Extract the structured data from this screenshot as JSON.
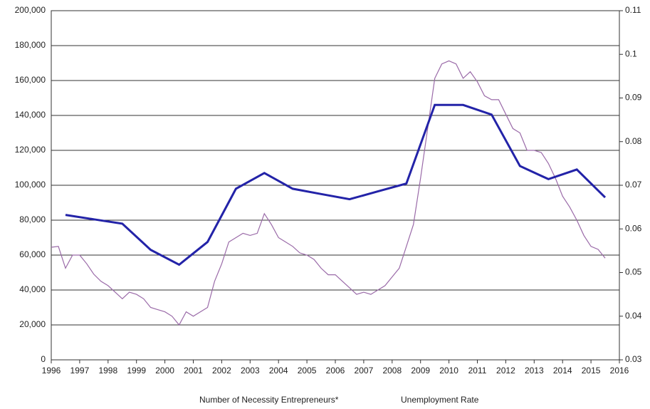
{
  "chart_data": {
    "type": "line",
    "xlim": [
      1996,
      2016
    ],
    "xticks": [
      1996,
      1997,
      1998,
      1999,
      2000,
      2001,
      2002,
      2003,
      2004,
      2005,
      2006,
      2007,
      2008,
      2009,
      2010,
      2011,
      2012,
      2013,
      2014,
      2015,
      2016
    ],
    "ylim": [
      0,
      200000
    ],
    "yticks": [
      0,
      {
        "value": 20000,
        "label": "20,000"
      },
      {
        "value": 40000,
        "label": "40,000"
      },
      {
        "value": 60000,
        "label": "60,000"
      },
      {
        "value": 80000,
        "label": "80,000"
      },
      {
        "value": 100000,
        "label": "100,000"
      },
      {
        "value": 120000,
        "label": "120,000"
      },
      {
        "value": 140000,
        "label": "140,000"
      },
      {
        "value": 160000,
        "label": "160,000"
      },
      {
        "value": 180000,
        "label": "180,000"
      },
      {
        "value": 200000,
        "label": "200,000"
      }
    ],
    "y2lim": [
      0.03,
      0.11
    ],
    "y2ticks": [
      0.03,
      0.04,
      0.05,
      0.06,
      0.07,
      0.08,
      0.09,
      0.1,
      0.11
    ],
    "grid": true,
    "legend": "bottom",
    "series": [
      {
        "name": "Number of Necessity Entrepreneurs*",
        "color": "#2323a8",
        "x": [
          1996.5,
          1997.5,
          1998.5,
          1999.5,
          2000.5,
          2001.5,
          2002.5,
          2003.5,
          2004.5,
          2005.5,
          2006.5,
          2007.5,
          2008.5,
          2009.5,
          2010.5,
          2011.5,
          2012.5,
          2013.5,
          2014.5,
          2015.5
        ],
        "values": [
          83000,
          80500,
          78000,
          63000,
          54500,
          67500,
          98000,
          107000,
          98000,
          95000,
          92000,
          96500,
          101000,
          146000,
          146000,
          140500,
          111000,
          103500,
          109000,
          93000
        ]
      },
      {
        "name": "Unemployment Rate",
        "color": "#9a6aa8",
        "axis": "y2",
        "x": [
          1996.0,
          1996.25,
          1996.5,
          1996.75,
          1997.0,
          1997.25,
          1997.5,
          1997.75,
          1998.0,
          1998.25,
          1998.5,
          1998.75,
          1999.0,
          1999.25,
          1999.5,
          1999.75,
          2000.0,
          2000.25,
          2000.5,
          2000.75,
          2001.0,
          2001.25,
          2001.5,
          2001.75,
          2002.0,
          2002.25,
          2002.5,
          2002.75,
          2003.0,
          2003.25,
          2003.5,
          2003.75,
          2004.0,
          2004.25,
          2004.5,
          2004.75,
          2005.0,
          2005.25,
          2005.5,
          2005.75,
          2006.0,
          2006.25,
          2006.5,
          2006.75,
          2007.0,
          2007.25,
          2007.5,
          2007.75,
          2008.0,
          2008.25,
          2008.5,
          2008.75,
          2009.0,
          2009.25,
          2009.5,
          2009.75,
          2010.0,
          2010.25,
          2010.5,
          2010.75,
          2011.0,
          2011.25,
          2011.5,
          2011.75,
          2012.0,
          2012.25,
          2012.5,
          2012.75,
          2013.0,
          2013.25,
          2013.5,
          2013.75,
          2014.0,
          2014.25,
          2014.5,
          2014.75,
          2015.0,
          2015.25,
          2015.5
        ],
        "values": [
          0.0558,
          0.056,
          0.051,
          0.054,
          0.054,
          0.052,
          0.0496,
          0.048,
          0.047,
          0.0455,
          0.044,
          0.0455,
          0.045,
          0.044,
          0.042,
          0.0415,
          0.041,
          0.04,
          0.038,
          0.041,
          0.04,
          0.041,
          0.042,
          0.048,
          0.052,
          0.057,
          0.058,
          0.059,
          0.0585,
          0.059,
          0.0635,
          0.061,
          0.058,
          0.057,
          0.056,
          0.0545,
          0.054,
          0.053,
          0.051,
          0.0495,
          0.0495,
          0.048,
          0.0465,
          0.045,
          0.0455,
          0.045,
          0.046,
          0.047,
          0.049,
          0.051,
          0.056,
          0.061,
          0.0716,
          0.083,
          0.0945,
          0.0978,
          0.0985,
          0.0978,
          0.0945,
          0.096,
          0.0937,
          0.0905,
          0.0896,
          0.0896,
          0.0863,
          0.083,
          0.082,
          0.078,
          0.078,
          0.0775,
          0.075,
          0.0716,
          0.0675,
          0.065,
          0.062,
          0.0585,
          0.056,
          0.0553,
          0.0533
        ]
      }
    ]
  }
}
